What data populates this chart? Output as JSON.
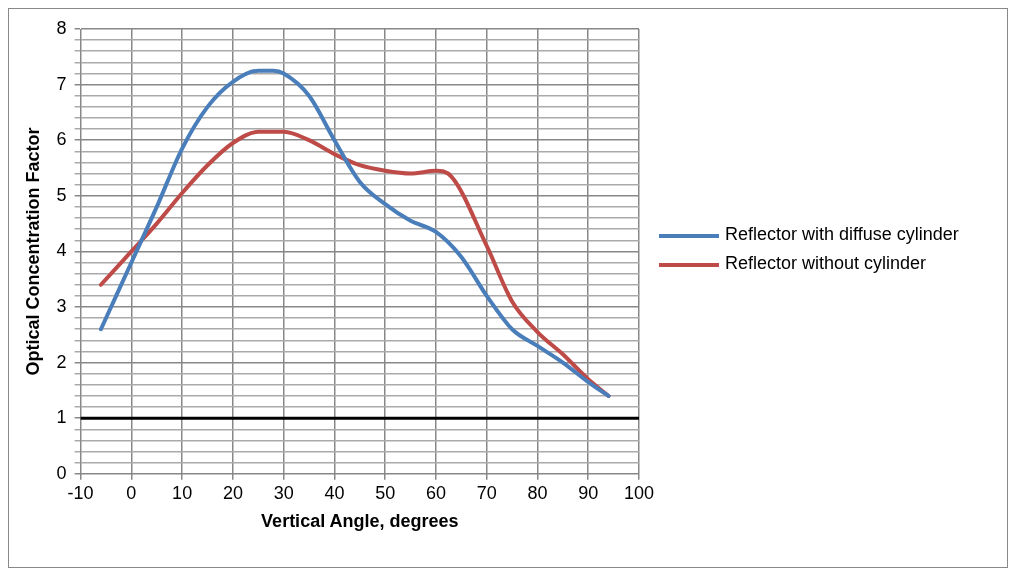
{
  "chart_data": {
    "type": "line",
    "xlabel": "Vertical Angle, degrees",
    "ylabel": "Optical Concentration Factor",
    "xlim": [
      -10,
      100
    ],
    "xticks": [
      -10,
      0,
      10,
      20,
      30,
      40,
      50,
      60,
      70,
      80,
      90,
      100
    ],
    "ylim": [
      0,
      8
    ],
    "yticks": [
      0,
      {
        "value": 0.2,
        "label": null
      },
      {
        "value": 0.4,
        "label": null
      },
      {
        "value": 0.6,
        "label": null
      },
      {
        "value": 0.8,
        "label": null
      },
      1,
      {
        "value": 1.2,
        "label": null
      },
      {
        "value": 1.4,
        "label": null
      },
      {
        "value": 1.6,
        "label": null
      },
      {
        "value": 1.8,
        "label": null
      },
      2,
      {
        "value": 2.2,
        "label": null
      },
      {
        "value": 2.4,
        "label": null
      },
      {
        "value": 2.6,
        "label": null
      },
      {
        "value": 2.8,
        "label": null
      },
      3,
      {
        "value": 3.2,
        "label": null
      },
      {
        "value": 3.4,
        "label": null
      },
      {
        "value": 3.6,
        "label": null
      },
      {
        "value": 3.8,
        "label": null
      },
      4,
      {
        "value": 4.2,
        "label": null
      },
      {
        "value": 4.4,
        "label": null
      },
      {
        "value": 4.6,
        "label": null
      },
      {
        "value": 4.8,
        "label": null
      },
      5,
      {
        "value": 5.2,
        "label": null
      },
      {
        "value": 5.4,
        "label": null
      },
      {
        "value": 5.6,
        "label": null
      },
      {
        "value": 5.8,
        "label": null
      },
      6,
      {
        "value": 6.2,
        "label": null
      },
      {
        "value": 6.4,
        "label": null
      },
      {
        "value": 6.6,
        "label": null
      },
      {
        "value": 6.8,
        "label": null
      },
      7,
      {
        "value": 7.2,
        "label": null
      },
      {
        "value": 7.4,
        "label": null
      },
      {
        "value": 7.6,
        "label": null
      },
      {
        "value": 7.8,
        "label": null
      },
      8
    ],
    "grid": true,
    "legend": "right",
    "marker": "none",
    "line_style": "solid",
    "series": [
      {
        "name": "Reflector with diffuse cylinder",
        "color": "#4a7ebb",
        "x": [
          -6,
          0,
          5,
          10,
          15,
          20,
          25,
          28,
          30,
          35,
          40,
          45,
          50,
          55,
          60,
          65,
          70,
          75,
          80,
          85,
          90,
          94
        ],
        "values": [
          2.6,
          3.8,
          4.8,
          5.85,
          6.6,
          7.05,
          7.25,
          7.25,
          7.2,
          6.8,
          6.0,
          5.25,
          4.85,
          4.55,
          4.35,
          3.9,
          3.2,
          2.6,
          2.3,
          2.0,
          1.65,
          1.4
        ]
      },
      {
        "name": "Reflector without cylinder",
        "color": "#be4b48",
        "x": [
          -6,
          0,
          5,
          10,
          15,
          20,
          25,
          30,
          35,
          40,
          45,
          50,
          55,
          60,
          63,
          70,
          75,
          80,
          85,
          90,
          94
        ],
        "values": [
          3.4,
          4.0,
          4.5,
          5.05,
          5.55,
          5.95,
          6.15,
          6.15,
          6.0,
          5.75,
          5.55,
          5.45,
          5.4,
          5.45,
          5.35,
          4.1,
          3.1,
          2.55,
          2.15,
          1.7,
          1.4
        ]
      }
    ],
    "ref_lines": [
      {
        "axis": "y",
        "value": 1,
        "color": "#000000",
        "line_style": "solid"
      }
    ]
  }
}
